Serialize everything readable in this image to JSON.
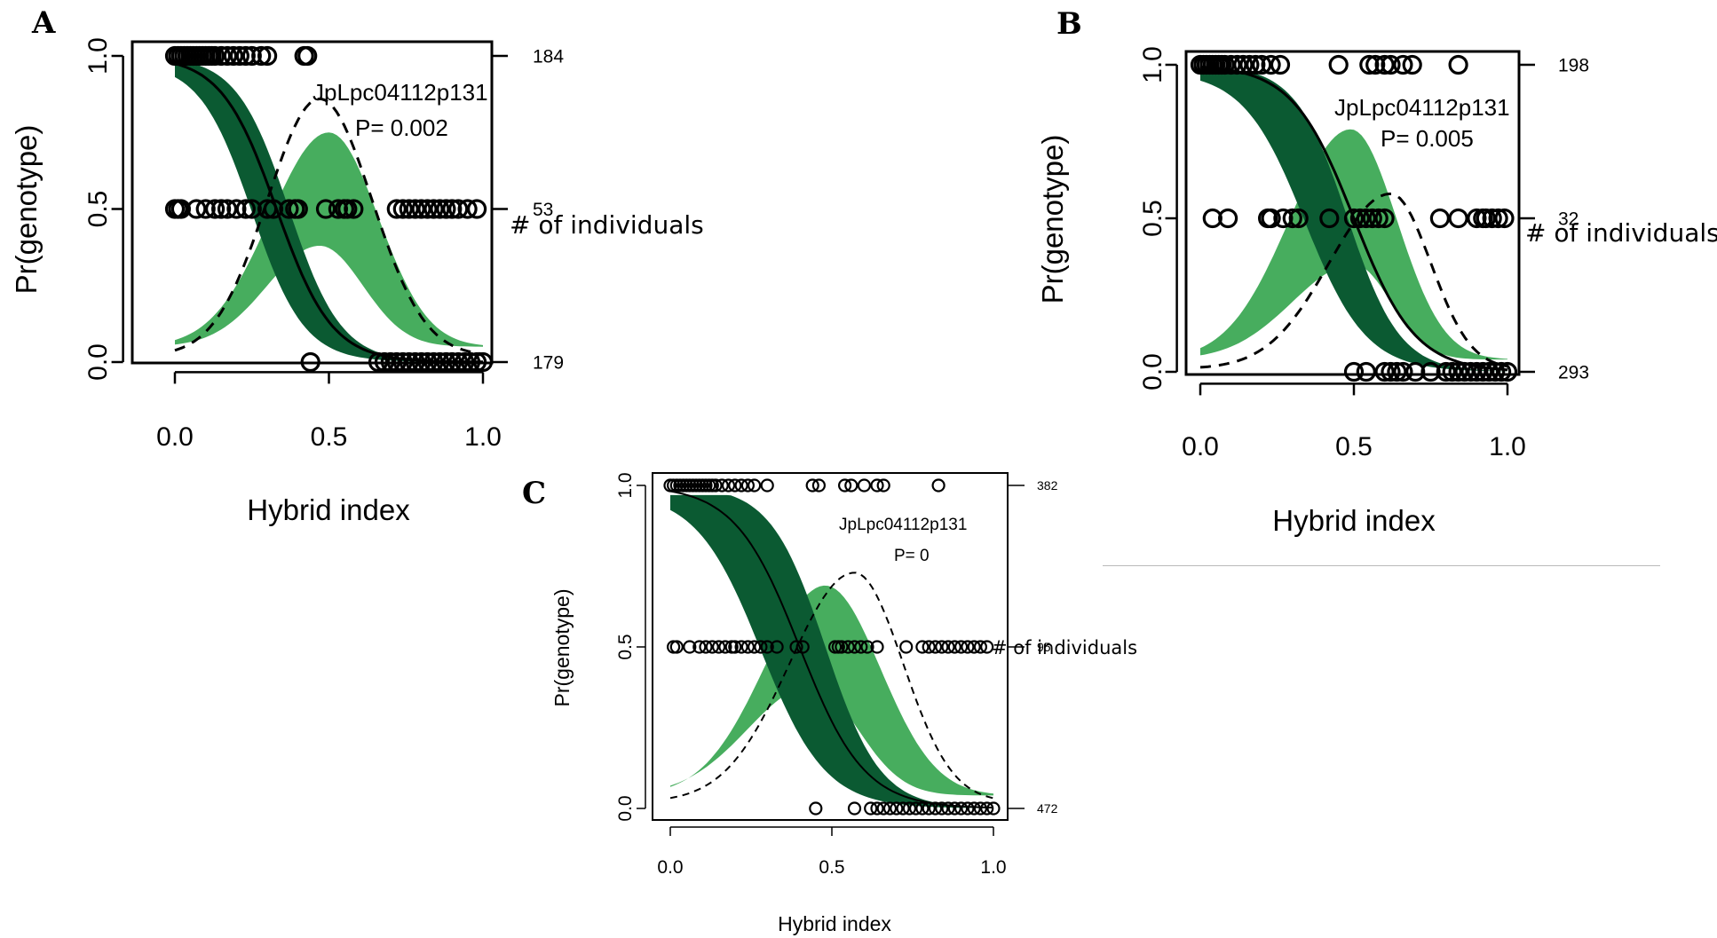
{
  "colors": {
    "dark_band": "#0b5a32",
    "light_band": "#47ad5e",
    "ink": "#000000",
    "divider": "#b9b9b9"
  },
  "chart_data": [
    {
      "type": "line",
      "panel_label": "A",
      "marker": "JpLpc04112p131",
      "p_value": "P= 0.002",
      "xlabel": "Hybrid index",
      "ylabel": "Pr(genotype)",
      "right_label": "# of individuals",
      "xlim": [
        0,
        1
      ],
      "ylim": [
        0,
        1
      ],
      "x_ticks": [
        "0.0",
        "0.5",
        "1.0"
      ],
      "y_ticks": [
        "0.0",
        "0.5",
        "1.0"
      ],
      "right_axis": [
        {
          "y": 1.0,
          "label": "184"
        },
        {
          "y": 0.5,
          "label": "53"
        },
        {
          "y": 0.0,
          "label": "179"
        }
      ],
      "curves": {
        "solid": {
          "type": "decline",
          "center": 0.33,
          "width": 0.09
        },
        "dashed": {
          "type": "peak",
          "peak_x": 0.47,
          "height": 0.86,
          "sigma_left": 0.17,
          "sigma_right": 0.17,
          "baseline": 0.02
        }
      },
      "bands": {
        "dark": {
          "lower": {
            "center": 0.37,
            "width": 0.085
          },
          "upper": {
            "center": 0.25,
            "width": 0.085
          },
          "max": 0.97
        },
        "light": {
          "lower": {
            "peak_x": 0.47,
            "height": 0.38,
            "sigma_left": 0.17,
            "sigma_right": 0.14,
            "baseline": 0.05
          },
          "upper": {
            "peak_x": 0.5,
            "height": 0.75,
            "sigma_left": 0.19,
            "sigma_right": 0.16,
            "baseline": 0.05
          }
        }
      },
      "points": {
        "top": [
          0.0,
          0.01,
          0.02,
          0.03,
          0.04,
          0.05,
          0.06,
          0.07,
          0.08,
          0.09,
          0.1,
          0.11,
          0.12,
          0.13,
          0.15,
          0.17,
          0.19,
          0.21,
          0.23,
          0.25,
          0.28,
          0.3,
          0.42,
          0.43
        ],
        "mid": [
          0.0,
          0.01,
          0.02,
          0.07,
          0.1,
          0.13,
          0.15,
          0.17,
          0.2,
          0.23,
          0.25,
          0.3,
          0.32,
          0.37,
          0.39,
          0.4,
          0.49,
          0.53,
          0.55,
          0.56,
          0.58,
          0.72,
          0.74,
          0.76,
          0.78,
          0.8,
          0.82,
          0.84,
          0.86,
          0.88,
          0.9,
          0.92,
          0.95,
          0.98
        ],
        "bottom": [
          0.44,
          0.66,
          0.68,
          0.7,
          0.72,
          0.74,
          0.76,
          0.78,
          0.8,
          0.82,
          0.84,
          0.86,
          0.88,
          0.9,
          0.92,
          0.94,
          0.96,
          0.98,
          1.0
        ]
      }
    },
    {
      "type": "line",
      "panel_label": "B",
      "marker": "JpLpc04112p131",
      "p_value": "P= 0.005",
      "xlabel": "Hybrid index",
      "ylabel": "Pr(genotype)",
      "right_label": "# of individuals",
      "xlim": [
        0,
        1
      ],
      "ylim": [
        0,
        1
      ],
      "x_ticks": [
        "0.0",
        "0.5",
        "1.0"
      ],
      "y_ticks": [
        "0.0",
        "0.5",
        "1.0"
      ],
      "right_axis": [
        {
          "y": 1.0,
          "label": "198"
        },
        {
          "y": 0.5,
          "label": "32"
        },
        {
          "y": 0.0,
          "label": "293"
        }
      ],
      "curves": {
        "solid": {
          "type": "decline",
          "center": 0.5,
          "width": 0.1
        },
        "dashed": {
          "type": "peak",
          "peak_x": 0.62,
          "height": 0.58,
          "sigma_left": 0.2,
          "sigma_right": 0.13,
          "baseline": 0.01
        }
      },
      "bands": {
        "dark": {
          "lower": {
            "center": 0.48,
            "width": 0.085
          },
          "upper": {
            "center": 0.34,
            "width": 0.1
          },
          "max": 0.97
        },
        "light": {
          "lower": {
            "peak_x": 0.5,
            "height": 0.35,
            "sigma_left": 0.2,
            "sigma_right": 0.12,
            "baseline": 0.04
          },
          "upper": {
            "peak_x": 0.49,
            "height": 0.79,
            "sigma_left": 0.2,
            "sigma_right": 0.15,
            "baseline": 0.04
          }
        }
      },
      "points": {
        "top": [
          0.0,
          0.01,
          0.02,
          0.03,
          0.04,
          0.05,
          0.06,
          0.07,
          0.08,
          0.1,
          0.12,
          0.14,
          0.16,
          0.18,
          0.2,
          0.23,
          0.26,
          0.45,
          0.55,
          0.57,
          0.6,
          0.62,
          0.66,
          0.69,
          0.84
        ],
        "mid": [
          0.04,
          0.09,
          0.22,
          0.23,
          0.27,
          0.3,
          0.32,
          0.42,
          0.5,
          0.52,
          0.54,
          0.56,
          0.58,
          0.6,
          0.78,
          0.84,
          0.9,
          0.92,
          0.93,
          0.95,
          0.97,
          0.99
        ],
        "bottom": [
          0.5,
          0.54,
          0.6,
          0.62,
          0.64,
          0.66,
          0.7,
          0.75,
          0.8,
          0.82,
          0.84,
          0.86,
          0.88,
          0.9,
          0.92,
          0.94,
          0.96,
          0.98,
          1.0
        ]
      }
    },
    {
      "type": "line",
      "panel_label": "C",
      "marker": "JpLpc04112p131",
      "p_value": "P= 0",
      "xlabel": "Hybrid index",
      "ylabel": "Pr(genotype)",
      "right_label": "# of individuals",
      "xlim": [
        0,
        1
      ],
      "ylim": [
        0,
        1
      ],
      "x_ticks": [
        "0.0",
        "0.5",
        "1.0"
      ],
      "y_ticks": [
        "0.0",
        "0.5",
        "1.0"
      ],
      "right_axis": [
        {
          "y": 1.0,
          "label": "382"
        },
        {
          "y": 0.5,
          "label": "95"
        },
        {
          "y": 0.0,
          "label": "472"
        }
      ],
      "curves": {
        "solid": {
          "type": "decline",
          "center": 0.4,
          "width": 0.1
        },
        "dashed": {
          "type": "peak",
          "peak_x": 0.57,
          "height": 0.73,
          "sigma_left": 0.2,
          "sigma_right": 0.15,
          "baseline": 0.02
        }
      },
      "bands": {
        "dark": {
          "lower": {
            "center": 0.48,
            "width": 0.085
          },
          "upper": {
            "center": 0.28,
            "width": 0.1
          },
          "max": 0.97
        },
        "light": {
          "lower": {
            "peak_x": 0.44,
            "height": 0.38,
            "sigma_left": 0.2,
            "sigma_right": 0.14,
            "baseline": 0.04
          },
          "upper": {
            "peak_x": 0.48,
            "height": 0.69,
            "sigma_left": 0.19,
            "sigma_right": 0.17,
            "baseline": 0.04
          }
        }
      },
      "points": {
        "top": [
          0.0,
          0.01,
          0.02,
          0.03,
          0.04,
          0.05,
          0.06,
          0.07,
          0.08,
          0.09,
          0.1,
          0.11,
          0.12,
          0.13,
          0.14,
          0.16,
          0.18,
          0.2,
          0.22,
          0.24,
          0.26,
          0.3,
          0.44,
          0.46,
          0.54,
          0.56,
          0.6,
          0.64,
          0.66,
          0.83
        ],
        "mid": [
          0.01,
          0.02,
          0.06,
          0.09,
          0.11,
          0.13,
          0.15,
          0.17,
          0.19,
          0.2,
          0.22,
          0.24,
          0.26,
          0.28,
          0.3,
          0.33,
          0.39,
          0.41,
          0.51,
          0.52,
          0.53,
          0.55,
          0.57,
          0.59,
          0.61,
          0.64,
          0.73,
          0.78,
          0.8,
          0.82,
          0.84,
          0.86,
          0.88,
          0.9,
          0.92,
          0.94,
          0.96,
          0.98
        ],
        "bottom": [
          0.45,
          0.57,
          0.62,
          0.64,
          0.66,
          0.68,
          0.7,
          0.72,
          0.74,
          0.76,
          0.78,
          0.8,
          0.82,
          0.84,
          0.86,
          0.88,
          0.9,
          0.92,
          0.94,
          0.96,
          0.98,
          1.0
        ]
      }
    }
  ]
}
